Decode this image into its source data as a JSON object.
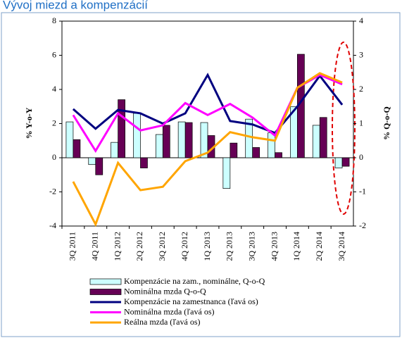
{
  "chart_data": {
    "type": "bar",
    "title": "Vývoj miezd a kompenzácií",
    "ylabel": "% Y-o-Y",
    "y2label": "% Q-o-Q",
    "categories": [
      "3Q 2011",
      "4Q 2011",
      "1Q 2012",
      "2Q 2012",
      "3Q 2012",
      "4Q 2012",
      "1Q 2013",
      "2Q 2013",
      "3Q 2013",
      "4Q 2013",
      "1Q 2014",
      "2Q 2014",
      "3Q 2014"
    ],
    "ylim": [
      -4,
      8
    ],
    "yticks": [
      -4,
      -2,
      0,
      2,
      4,
      6,
      8
    ],
    "y2lim": [
      -2,
      4
    ],
    "y2ticks": [
      -2,
      -1,
      0,
      1,
      2,
      3,
      4
    ],
    "series": [
      {
        "name": "Kompenzácie na zam., nominálne, Q-o-Q",
        "type": "bar",
        "axis": "y2",
        "color": "#ccffff",
        "values": [
          1.05,
          -0.2,
          0.45,
          1.3,
          0.68,
          1.05,
          1.03,
          -0.9,
          1.13,
          0.73,
          1.5,
          0.95,
          -0.3
        ]
      },
      {
        "name": "Nominálna mzda Q-o-Q",
        "type": "bar",
        "axis": "y2",
        "color": "#660055",
        "values": [
          0.53,
          -0.5,
          1.7,
          -0.3,
          0.95,
          1.03,
          0.65,
          0.43,
          0.3,
          0.15,
          3.03,
          1.18,
          -0.25
        ]
      },
      {
        "name": "Kompenzácie na zamestnanca (ľavá os)",
        "type": "line",
        "color": "#000080",
        "values": [
          2.85,
          1.7,
          2.8,
          2.6,
          2.0,
          2.6,
          4.85,
          2.15,
          1.95,
          1.45,
          3.0,
          4.8,
          3.1
        ]
      },
      {
        "name": "Nominálna mzda (ľavá os)",
        "type": "line",
        "color": "#ff00ff",
        "values": [
          2.5,
          0.4,
          2.6,
          1.6,
          1.9,
          3.2,
          2.5,
          3.15,
          2.35,
          1.3,
          4.1,
          4.85,
          4.3
        ]
      },
      {
        "name": "Reálna mzda (ľavá os)",
        "type": "line",
        "color": "#ffa500",
        "values": [
          -1.4,
          -3.9,
          -0.3,
          -1.9,
          -1.7,
          -0.2,
          0.3,
          1.5,
          1.2,
          1.0,
          4.1,
          4.95,
          4.4
        ]
      }
    ]
  }
}
